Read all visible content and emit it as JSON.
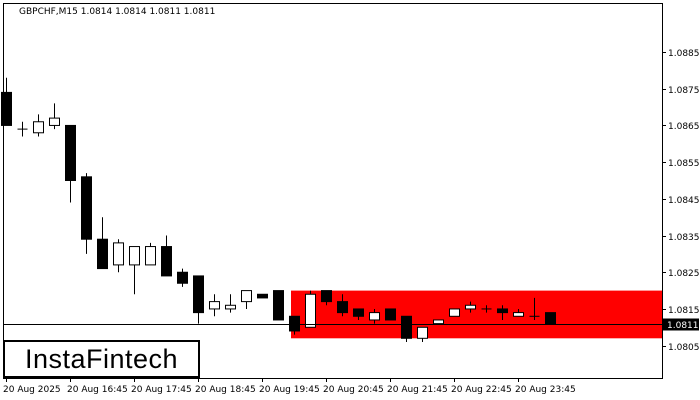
{
  "chart_data": {
    "type": "candlestick",
    "title": "GBPCHF,M15  1.0814 1.0814 1.0811 1.0811",
    "current_price": 1.0811,
    "current_price_label": "1.0811",
    "ylim": [
      1.08,
      1.0894
    ],
    "y_ticks": [
      "1.0885",
      "1.0875",
      "1.0865",
      "1.0855",
      "1.0845",
      "1.0835",
      "1.0825",
      "1.0815",
      "1.0805"
    ],
    "x_tick_labels": [
      "20 Aug 2025",
      "20 Aug 16:45",
      "20 Aug 17:45",
      "20 Aug 18:45",
      "20 Aug 19:45",
      "20 Aug 20:45",
      "20 Aug 21:45",
      "20 Aug 22:45",
      "20 Aug 23:45"
    ],
    "zone": {
      "color": "#ff0000",
      "low": 1.0807,
      "high": 1.082,
      "from_index": 18
    },
    "candles": [
      {
        "o": 1.0874,
        "h": 1.0878,
        "l": 1.0865,
        "c": 1.0865
      },
      {
        "o": 1.0864,
        "h": 1.0866,
        "l": 1.0862,
        "c": 1.0864
      },
      {
        "o": 1.0863,
        "h": 1.0868,
        "l": 1.0862,
        "c": 1.0866
      },
      {
        "o": 1.0865,
        "h": 1.0871,
        "l": 1.0864,
        "c": 1.0867
      },
      {
        "o": 1.0865,
        "h": 1.0865,
        "l": 1.0844,
        "c": 1.085
      },
      {
        "o": 1.0851,
        "h": 1.0852,
        "l": 1.083,
        "c": 1.0834
      },
      {
        "o": 1.0834,
        "h": 1.084,
        "l": 1.0826,
        "c": 1.0826
      },
      {
        "o": 1.0827,
        "h": 1.0834,
        "l": 1.0825,
        "c": 1.0833
      },
      {
        "o": 1.0827,
        "h": 1.0832,
        "l": 1.0819,
        "c": 1.0832
      },
      {
        "o": 1.0827,
        "h": 1.0833,
        "l": 1.0827,
        "c": 1.0832
      },
      {
        "o": 1.0832,
        "h": 1.0835,
        "l": 1.0824,
        "c": 1.0824
      },
      {
        "o": 1.0825,
        "h": 1.0826,
        "l": 1.0821,
        "c": 1.0822
      },
      {
        "o": 1.0824,
        "h": 1.0824,
        "l": 1.0811,
        "c": 1.0814
      },
      {
        "o": 1.0815,
        "h": 1.0819,
        "l": 1.0813,
        "c": 1.0817
      },
      {
        "o": 1.0815,
        "h": 1.0819,
        "l": 1.0814,
        "c": 1.0816
      },
      {
        "o": 1.0817,
        "h": 1.082,
        "l": 1.0815,
        "c": 1.082
      },
      {
        "o": 1.0819,
        "h": 1.0819,
        "l": 1.0818,
        "c": 1.0818
      },
      {
        "o": 1.082,
        "h": 1.082,
        "l": 1.0812,
        "c": 1.0812
      },
      {
        "o": 1.0813,
        "h": 1.0813,
        "l": 1.0808,
        "c": 1.0809
      },
      {
        "o": 1.081,
        "h": 1.082,
        "l": 1.081,
        "c": 1.0819
      },
      {
        "o": 1.082,
        "h": 1.082,
        "l": 1.0816,
        "c": 1.0817
      },
      {
        "o": 1.0817,
        "h": 1.0819,
        "l": 1.0813,
        "c": 1.0814
      },
      {
        "o": 1.0815,
        "h": 1.0815,
        "l": 1.0812,
        "c": 1.0813
      },
      {
        "o": 1.0812,
        "h": 1.0815,
        "l": 1.0811,
        "c": 1.0814
      },
      {
        "o": 1.0815,
        "h": 1.0815,
        "l": 1.0812,
        "c": 1.0812
      },
      {
        "o": 1.0813,
        "h": 1.0813,
        "l": 1.0806,
        "c": 1.0807
      },
      {
        "o": 1.0807,
        "h": 1.081,
        "l": 1.0806,
        "c": 1.081
      },
      {
        "o": 1.0811,
        "h": 1.0812,
        "l": 1.0811,
        "c": 1.0812
      },
      {
        "o": 1.0813,
        "h": 1.0815,
        "l": 1.0813,
        "c": 1.0815
      },
      {
        "o": 1.0815,
        "h": 1.0817,
        "l": 1.0814,
        "c": 1.0816
      },
      {
        "o": 1.0815,
        "h": 1.0816,
        "l": 1.0814,
        "c": 1.0815
      },
      {
        "o": 1.0815,
        "h": 1.0816,
        "l": 1.0812,
        "c": 1.0814
      },
      {
        "o": 1.0813,
        "h": 1.0815,
        "l": 1.0813,
        "c": 1.0814
      },
      {
        "o": 1.0813,
        "h": 1.0818,
        "l": 1.0812,
        "c": 1.0813
      },
      {
        "o": 1.0814,
        "h": 1.0814,
        "l": 1.0811,
        "c": 1.0811
      }
    ]
  },
  "brand": {
    "logo_text": "InstaFintech"
  }
}
